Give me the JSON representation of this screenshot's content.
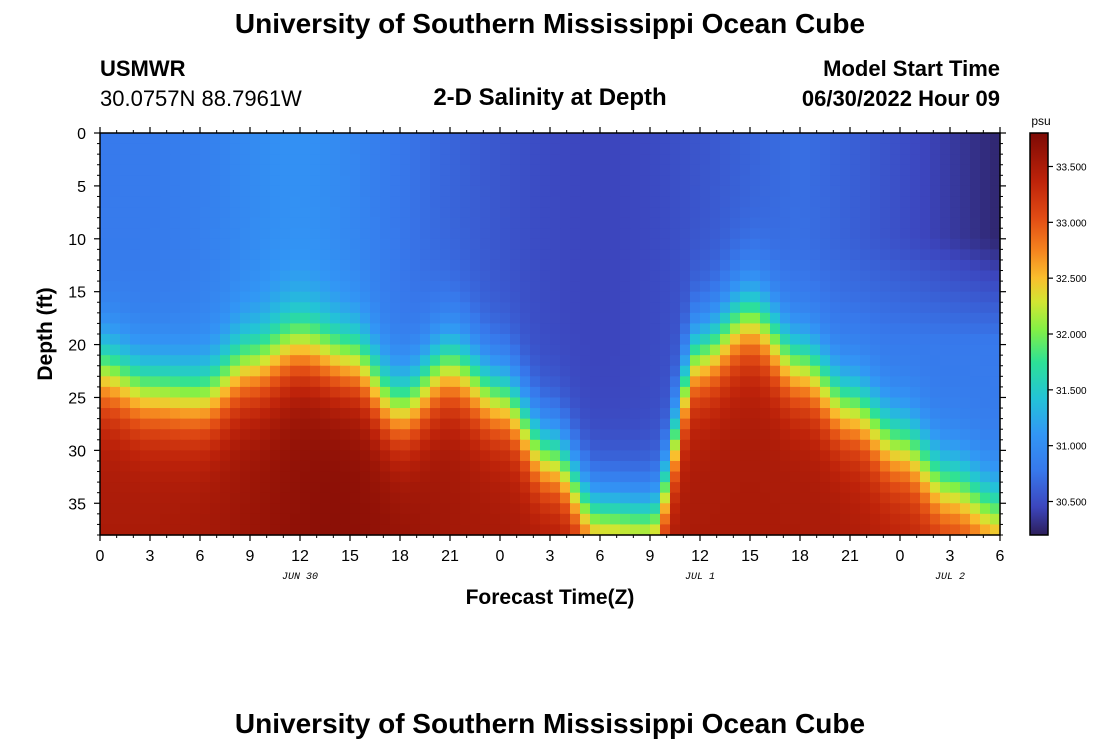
{
  "header": {
    "title": "University of Southern Mississippi Ocean Cube",
    "station": "USMWR",
    "coords": "30.0757N  88.7961W",
    "model_start_label": "Model Start Time",
    "model_start_value": "06/30/2022 Hour 09"
  },
  "footer": {
    "title": "University of Southern Mississippi Ocean Cube"
  },
  "chart_data": {
    "type": "heatmap",
    "title": "2-D Salinity at Depth",
    "xlabel": "Forecast Time(Z)",
    "ylabel": "Depth (ft)",
    "x_ticks": [
      "0",
      "3",
      "6",
      "9",
      "12",
      "15",
      "18",
      "21",
      "0",
      "3",
      "6",
      "9",
      "12",
      "15",
      "18",
      "21",
      "0",
      "3",
      "6"
    ],
    "x_range_hours": [
      0,
      54
    ],
    "day_labels": [
      {
        "label": "JUN 30",
        "hour": 12
      },
      {
        "label": "JUL 1",
        "hour": 36
      },
      {
        "label": "JUL 2",
        "hour": 51
      }
    ],
    "y_ticks": [
      "0",
      "5",
      "10",
      "15",
      "20",
      "25",
      "30",
      "35"
    ],
    "y_tick_values": [
      0,
      5,
      10,
      15,
      20,
      25,
      30,
      35
    ],
    "ylim": [
      0,
      38
    ],
    "colorbar": {
      "unit": "psu",
      "range": [
        30.2,
        33.8
      ],
      "tick_labels": [
        "33.500",
        "33.000",
        "32.500",
        "32.000",
        "31.500",
        "31.000",
        "30.500"
      ],
      "tick_values": [
        33.5,
        33.0,
        32.5,
        32.0,
        31.5,
        31.0,
        30.5
      ]
    },
    "surface_salinity_psu": 30.8,
    "deep_salinity_psu": 33.5,
    "halocline_depth_ft": {
      "hours": [
        0,
        3,
        6,
        9,
        12,
        15,
        18,
        21,
        24,
        27,
        30,
        33,
        36,
        39,
        42,
        45,
        48,
        51,
        54
      ],
      "depths": [
        22.5,
        24.5,
        25.0,
        22.0,
        20.0,
        21.5,
        26.0,
        22.0,
        25.0,
        30.5,
        36.5,
        37.0,
        21.0,
        17.5,
        22.0,
        26.0,
        29.5,
        33.5,
        36.0
      ]
    }
  }
}
